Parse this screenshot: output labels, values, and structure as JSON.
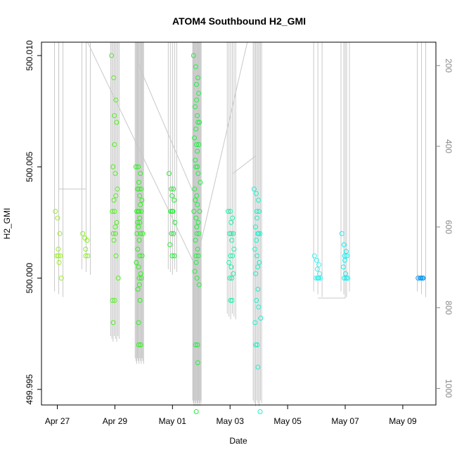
{
  "chart_data": {
    "type": "scatter",
    "title": "ATOM4 Southbound H2_GMI",
    "xlabel": "Date",
    "ylabel": "H2_GMI",
    "x_ticks": [
      "Apr 27",
      "Apr 29",
      "May 01",
      "May 03",
      "May 05",
      "May 07",
      "May 09"
    ],
    "x_tick_days": [
      0,
      2,
      4,
      6,
      8,
      10,
      12
    ],
    "xlim_days": [
      -0.55,
      13.15
    ],
    "y_ticks": [
      "499.995",
      "500.000",
      "500.005",
      "500.010"
    ],
    "y_tick_values": [
      499.995,
      500.0,
      500.005,
      500.01
    ],
    "ylim": [
      499.9943,
      500.0106
    ],
    "right_axis_ticks": [
      "200",
      "400",
      "600",
      "800",
      "1000"
    ],
    "right_axis_values": [
      200,
      400,
      600,
      800,
      1000
    ],
    "right_axis_lim": [
      142,
      1041
    ],
    "grid": false,
    "clusters": [
      {
        "day": 0.05,
        "color": "#99ee22",
        "ys": [
          500.003,
          500.0027,
          500.002,
          500.0013,
          500.001,
          500.001,
          500.001,
          500.0007,
          500.0
        ]
      },
      {
        "day": 1.0,
        "color": "#88ee22",
        "ys": [
          500.002,
          500.0018,
          500.0017,
          500.0013,
          500.001,
          500.001
        ]
      },
      {
        "day": 2.0,
        "color": "#55ee22",
        "ys": [
          500.01,
          500.009,
          500.008,
          500.0073,
          500.007,
          500.006,
          500.005,
          500.0047,
          500.004,
          500.0037,
          500.0035,
          500.003,
          500.003,
          500.0025,
          500.0023,
          500.002,
          500.002,
          500.0017,
          500.001,
          500.0,
          499.999,
          499.999,
          499.998
        ]
      },
      {
        "day": 2.85,
        "color": "#33ee22",
        "ys": [
          500.005,
          500.005,
          500.0047,
          500.0043,
          500.004,
          500.004,
          500.004,
          500.0037,
          500.0035,
          500.0033,
          500.003,
          500.003,
          500.003,
          500.003,
          500.0027,
          500.0025,
          500.0025,
          500.0023,
          500.002,
          500.002,
          500.002,
          500.0017,
          500.0013,
          500.001,
          500.001,
          500.0007,
          500.0005,
          500.0002,
          500.0,
          500.0,
          499.9997,
          499.9995,
          499.999,
          499.998,
          499.997,
          499.997
        ]
      },
      {
        "day": 4.0,
        "color": "#22ee33",
        "ys": [
          500.0047,
          500.004,
          500.004,
          500.0037,
          500.0035,
          500.003,
          500.003,
          500.003,
          500.0025,
          500.002,
          500.002,
          500.0015,
          500.001,
          500.001
        ]
      },
      {
        "day": 4.85,
        "color": "#22ee44",
        "ys": [
          500.01,
          500.0095,
          500.009,
          500.0087,
          500.0083,
          500.008,
          500.0077,
          500.0073,
          500.007,
          500.007,
          500.0067,
          500.0063,
          500.006,
          500.006,
          500.0057,
          500.0053,
          500.005,
          500.005,
          500.0047,
          500.0043,
          500.004,
          500.0037,
          500.0035,
          500.0033,
          500.003,
          500.003,
          500.0027,
          500.0025,
          500.0023,
          500.002,
          500.002,
          500.0017,
          500.0013,
          500.001,
          500.001,
          500.0007,
          500.0003,
          500.0,
          499.9997,
          499.997,
          499.997,
          499.9962,
          499.994
        ]
      },
      {
        "day": 6.05,
        "color": "#22eeaa",
        "ys": [
          500.003,
          500.003,
          500.0027,
          500.0025,
          500.002,
          500.002,
          500.002,
          500.0017,
          500.0013,
          500.001,
          500.001,
          500.0007,
          500.0005,
          500.0002,
          500.0,
          500.0,
          499.999,
          499.999
        ]
      },
      {
        "day": 6.95,
        "color": "#22eecc",
        "ys": [
          500.004,
          500.0038,
          500.0035,
          500.003,
          500.003,
          500.0027,
          500.0023,
          500.002,
          500.002,
          500.002,
          500.0017,
          500.0013,
          500.001,
          500.0007,
          500.0005,
          500.0002,
          499.9995,
          499.999,
          499.9987,
          499.9982,
          499.998,
          499.997,
          499.997,
          499.996,
          499.994
        ]
      },
      {
        "day": 9.05,
        "color": "#44eeee",
        "ys": [
          500.001,
          500.0008,
          500.0006,
          500.0004,
          500.0002,
          500.0,
          500.0,
          500.0,
          500.0,
          500.0
        ]
      },
      {
        "day": 10.0,
        "color": "#11eeee",
        "ys": [
          500.002,
          500.0015,
          500.0012,
          500.001,
          500.001,
          500.0008,
          500.0005,
          500.0002,
          500.0,
          500.0,
          500.0
        ]
      },
      {
        "day": 12.65,
        "color": "#1199ee",
        "ys": [
          500.0,
          500.0,
          500.0,
          500.0,
          500.0,
          500.0
        ]
      }
    ]
  }
}
